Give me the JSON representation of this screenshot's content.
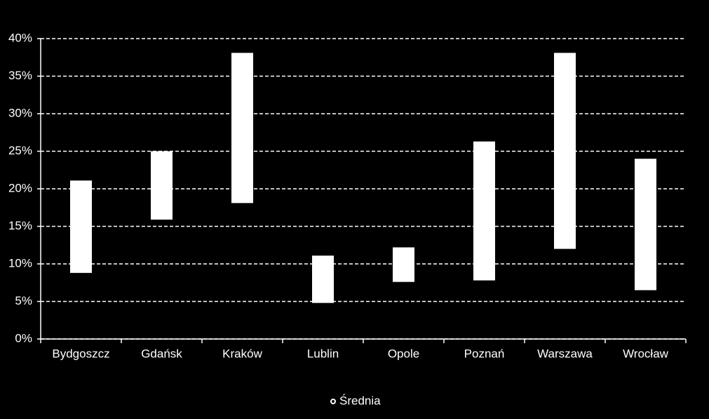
{
  "chart_data": {
    "type": "range-bar",
    "categories": [
      "Bydgoszcz",
      "Gdańsk",
      "Kraków",
      "Lublin",
      "Opole",
      "Poznań",
      "Warszawa",
      "Wrocław"
    ],
    "series": [
      {
        "name": "Średnia",
        "color": "#ffffff",
        "low": [
          8.8,
          15.9,
          18.1,
          4.8,
          7.6,
          7.8,
          12.0,
          6.5
        ],
        "high": [
          21.1,
          25.0,
          38.1,
          11.1,
          12.2,
          26.3,
          38.1,
          24.0
        ]
      }
    ],
    "ylim": [
      0,
      40
    ],
    "yticks": [
      {
        "value": 0,
        "label": "0%"
      },
      {
        "value": 5,
        "label": "5%"
      },
      {
        "value": 10,
        "label": "10%"
      },
      {
        "value": 15,
        "label": "15%"
      },
      {
        "value": 20,
        "label": "20%"
      },
      {
        "value": 25,
        "label": "25%"
      },
      {
        "value": 30,
        "label": "30%"
      },
      {
        "value": 35,
        "label": "35%"
      },
      {
        "value": 40,
        "label": "40%"
      }
    ],
    "grid": true
  }
}
